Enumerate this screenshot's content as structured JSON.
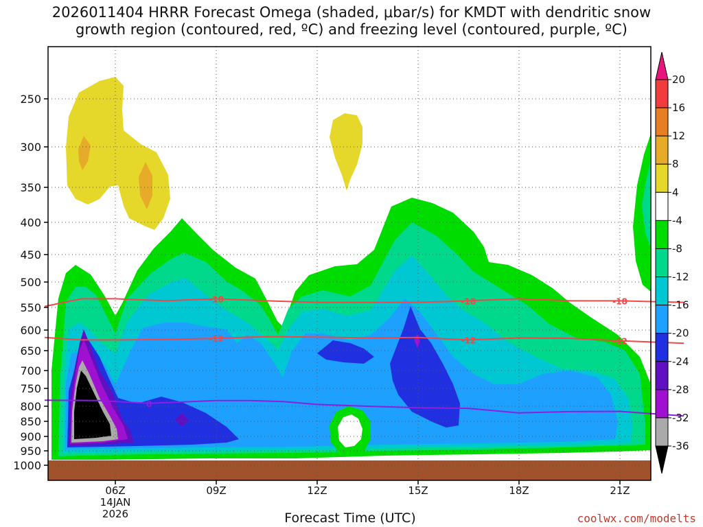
{
  "title": {
    "line1": "2026011404 HRRR Forecast Omega (shaded, μbar/s) for KMDT with dendritic snow",
    "line2": "growth region (contoured, red, ºC) and freezing level (contoured, purple, ºC)"
  },
  "credit": "coolwx.com/modelts",
  "colors": {
    "black": "#000000",
    "gray": "#aaaaaa",
    "purple": "#a010d0",
    "violet": "#6010c0",
    "blue": "#2030e0",
    "lightblue": "#1ea0ff",
    "cyan": "#00c8d2",
    "seafoam": "#00d88c",
    "green": "#00dc00",
    "yellow": "#e6d82a",
    "gold": "#e6ab28",
    "orange": "#e67e22",
    "red": "#f03c3c",
    "magenta": "#e6147c",
    "ground": "#a0522d",
    "dgz": "#f04848",
    "freezing": "#8c1ee0"
  },
  "chart_data": {
    "type": "heatmap",
    "xlabel": "Forecast Time (UTC)",
    "x_ticks": [
      "06Z",
      "09Z",
      "12Z",
      "15Z",
      "18Z",
      "21Z"
    ],
    "x_date_label": [
      "14JAN",
      "2026"
    ],
    "y_ticks": [
      250,
      300,
      350,
      400,
      450,
      500,
      550,
      600,
      650,
      700,
      750,
      800,
      850,
      900,
      950,
      1000
    ],
    "yaxis": "pressure (hPa), inverted",
    "colorbar": {
      "unit": "μbar/s",
      "levels": [
        20,
        16,
        12,
        8,
        4,
        -4,
        -8,
        -12,
        -16,
        -20,
        -24,
        -28,
        -32,
        -36
      ],
      "colors": [
        "#e6147c",
        "#f03c3c",
        "#e67e22",
        "#e6ab28",
        "#e6d82a",
        "#ffffff",
        "#00dc00",
        "#00d88c",
        "#00c8d2",
        "#1ea0ff",
        "#2030e0",
        "#6010c0",
        "#a010d0",
        "#aaaaaa",
        "#000000"
      ]
    },
    "contours": [
      {
        "label": "-18",
        "color": "#f04848",
        "points": [
          [
            3.9,
            548
          ],
          [
            5.0,
            533
          ],
          [
            6.0,
            533
          ],
          [
            7.5,
            537
          ],
          [
            9.0,
            533
          ],
          [
            10.5,
            537
          ],
          [
            12.0,
            540
          ],
          [
            13.5,
            540
          ],
          [
            15.0,
            540
          ],
          [
            16.5,
            537
          ],
          [
            18.0,
            533
          ],
          [
            19.5,
            537
          ],
          [
            21.0,
            537
          ],
          [
            22.9,
            540
          ]
        ]
      },
      {
        "label": "-12",
        "color": "#f04848",
        "points": [
          [
            3.9,
            618
          ],
          [
            5.0,
            624
          ],
          [
            6.0,
            624
          ],
          [
            7.5,
            623
          ],
          [
            9.0,
            620
          ],
          [
            10.5,
            616
          ],
          [
            12.0,
            617
          ],
          [
            13.5,
            619
          ],
          [
            15.0,
            618
          ],
          [
            16.5,
            624
          ],
          [
            18.0,
            619
          ],
          [
            19.5,
            620
          ],
          [
            21.0,
            626
          ],
          [
            22.9,
            632
          ]
        ]
      },
      {
        "label": "0",
        "color": "#8c1ee0",
        "points": [
          [
            3.9,
            783
          ],
          [
            5.5,
            784
          ],
          [
            7.0,
            792
          ],
          [
            9.0,
            784
          ],
          [
            10.0,
            784
          ],
          [
            11.0,
            787
          ],
          [
            12.0,
            795
          ],
          [
            13.5,
            800
          ],
          [
            15.0,
            805
          ],
          [
            16.5,
            807
          ],
          [
            18.0,
            822
          ],
          [
            19.5,
            818
          ],
          [
            21.0,
            817
          ],
          [
            22.9,
            832
          ]
        ]
      }
    ],
    "x_range_hours_from_06Z": [
      -2.0,
      15.8
    ]
  }
}
